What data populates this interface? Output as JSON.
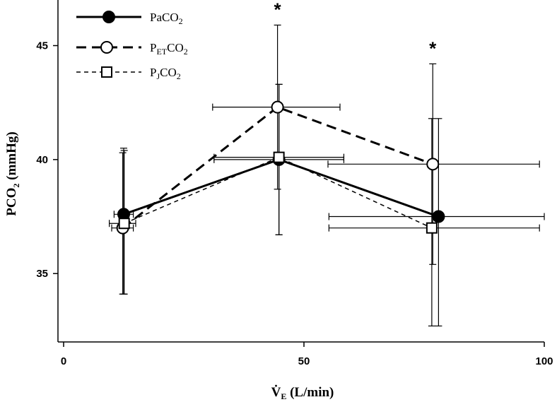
{
  "chart_data": {
    "type": "line",
    "xlabel": "V̇E (L/min)",
    "ylabel": "PCO2 (mmHg)",
    "xlim": [
      0,
      100
    ],
    "ylim": [
      32,
      47
    ],
    "xticks": [
      0,
      50,
      100
    ],
    "yticks": [
      35,
      40,
      45
    ],
    "grid": false,
    "legend": "top-left",
    "series": [
      {
        "name": "PaCO2",
        "line": "solid",
        "marker": "filled-circle",
        "points": [
          {
            "x": 12.5,
            "y": 37.6,
            "y_err_low": 34.1,
            "y_err_high": 40.5,
            "x_err_low": 10.5,
            "x_err_high": 14.5
          },
          {
            "x": 44.8,
            "y": 40.0,
            "y_err_low": 36.7,
            "y_err_high": 43.3,
            "x_err_low": 31.3,
            "x_err_high": 58.3
          },
          {
            "x": 78.0,
            "y": 37.5,
            "y_err_low": 32.7,
            "y_err_high": 41.8,
            "x_err_low": 55.2,
            "x_err_high": 100.0
          }
        ]
      },
      {
        "name": "PETCO2",
        "line": "long-dash",
        "marker": "open-circle",
        "points": [
          {
            "x": 12.3,
            "y": 37.0,
            "y_err_low": 34.1,
            "y_err_high": 40.3,
            "x_err_low": 10.0,
            "x_err_high": 14.5
          },
          {
            "x": 44.5,
            "y": 42.3,
            "y_err_low": 38.7,
            "y_err_high": 45.9,
            "x_err_low": 31.0,
            "x_err_high": 57.5
          },
          {
            "x": 76.8,
            "y": 39.8,
            "y_err_low": 35.4,
            "y_err_high": 44.2,
            "x_err_low": 55.0,
            "x_err_high": 99.0
          }
        ]
      },
      {
        "name": "PJCO2",
        "line": "short-dash",
        "marker": "open-square",
        "points": [
          {
            "x": 12.6,
            "y": 37.2,
            "y_err_low": 34.1,
            "y_err_high": 40.4,
            "x_err_low": 9.5,
            "x_err_high": 15.0
          },
          {
            "x": 44.8,
            "y": 40.1,
            "y_err_low": 36.7,
            "y_err_high": 43.3,
            "x_err_low": 31.3,
            "x_err_high": 58.3
          },
          {
            "x": 76.6,
            "y": 37.0,
            "y_err_low": 32.7,
            "y_err_high": 41.8,
            "x_err_low": 55.2,
            "x_err_high": 99.0
          }
        ]
      }
    ],
    "annotations": [
      {
        "text": "*",
        "x": 44.5,
        "y": 46.3
      },
      {
        "text": "*",
        "x": 76.8,
        "y": 44.6
      }
    ]
  }
}
